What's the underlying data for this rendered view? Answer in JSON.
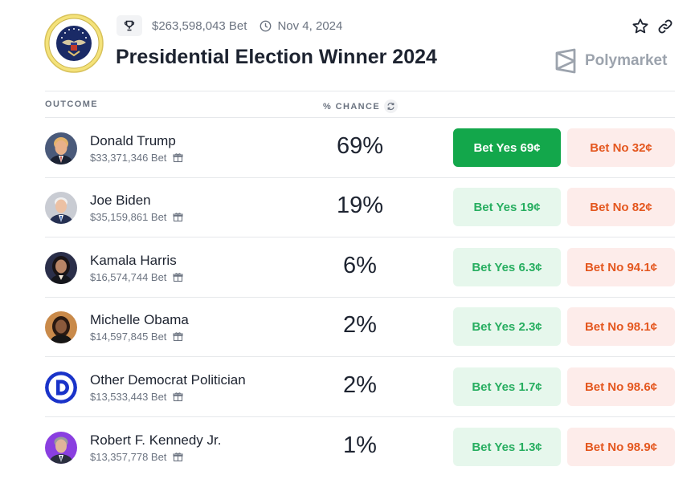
{
  "market": {
    "volume": "$263,598,043 Bet",
    "date": "Nov 4, 2024",
    "title": "Presidential Election Winner 2024",
    "brand": "Polymarket",
    "seal_text": "SEAL OF THE PRESIDENT OF THE UNITED STATES"
  },
  "icons": {
    "trophy": "trophy-icon",
    "clock": "clock-icon",
    "star": "star-icon",
    "link": "link-icon",
    "refresh": "refresh-icon",
    "gift": "gift-icon",
    "brand_logo": "polymarket-logo-icon"
  },
  "table": {
    "col_outcome": "OUTCOME",
    "col_chance": "% CHANCE"
  },
  "colors": {
    "yes_active_bg": "#13a74b",
    "yes_bg": "#e6f7ec",
    "yes_text": "#27ae60",
    "no_bg": "#fdecea",
    "no_text": "#e4571f"
  },
  "outcomes": [
    {
      "name": "Donald Trump",
      "volume": "$33,371,346 Bet",
      "chance": "69%",
      "yes_label": "Bet Yes 69¢",
      "no_label": "Bet No 32¢"
    },
    {
      "name": "Joe Biden",
      "volume": "$35,159,861 Bet",
      "chance": "19%",
      "yes_label": "Bet Yes 19¢",
      "no_label": "Bet No 82¢"
    },
    {
      "name": "Kamala Harris",
      "volume": "$16,574,744 Bet",
      "chance": "6%",
      "yes_label": "Bet Yes 6.3¢",
      "no_label": "Bet No 94.1¢"
    },
    {
      "name": "Michelle Obama",
      "volume": "$14,597,845 Bet",
      "chance": "2%",
      "yes_label": "Bet Yes 2.3¢",
      "no_label": "Bet No 98.1¢"
    },
    {
      "name": "Other Democrat Politician",
      "volume": "$13,533,443 Bet",
      "chance": "2%",
      "yes_label": "Bet Yes 1.7¢",
      "no_label": "Bet No 98.6¢"
    },
    {
      "name": "Robert F. Kennedy Jr.",
      "volume": "$13,357,778 Bet",
      "chance": "1%",
      "yes_label": "Bet Yes 1.3¢",
      "no_label": "Bet No 98.9¢"
    }
  ]
}
